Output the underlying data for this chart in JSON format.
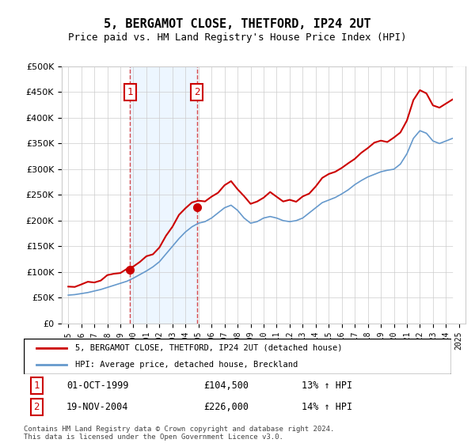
{
  "title": "5, BERGAMOT CLOSE, THETFORD, IP24 2UT",
  "subtitle": "Price paid vs. HM Land Registry's House Price Index (HPI)",
  "legend_line1": "5, BERGAMOT CLOSE, THETFORD, IP24 2UT (detached house)",
  "legend_line2": "HPI: Average price, detached house, Breckland",
  "sale1_label": "1",
  "sale1_date": "01-OCT-1999",
  "sale1_price": "£104,500",
  "sale1_hpi": "13% ↑ HPI",
  "sale2_label": "2",
  "sale2_date": "19-NOV-2004",
  "sale2_price": "£226,000",
  "sale2_hpi": "14% ↑ HPI",
  "footer": "Contains HM Land Registry data © Crown copyright and database right 2024.\nThis data is licensed under the Open Government Licence v3.0.",
  "price_color": "#cc0000",
  "hpi_color": "#6699cc",
  "sale1_x_year": 1999.75,
  "sale2_x_year": 2004.88,
  "ylim_min": 0,
  "ylim_max": 500000,
  "xlim_min": 1994.5,
  "xlim_max": 2025.5
}
